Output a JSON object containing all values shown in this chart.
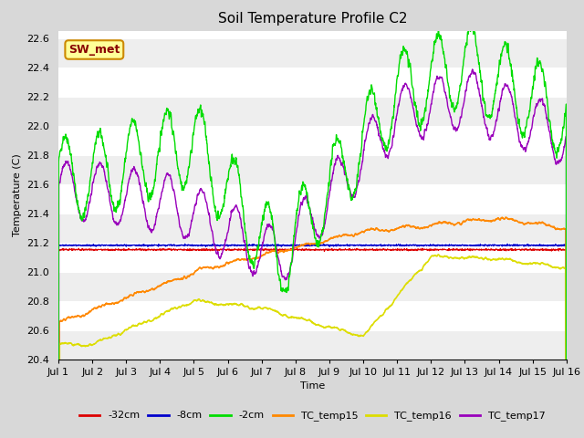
{
  "title": "Soil Temperature Profile C2",
  "xlabel": "Time",
  "ylabel": "Temperature (C)",
  "ylim": [
    20.4,
    22.65
  ],
  "xlim": [
    0,
    15
  ],
  "xtick_labels": [
    "Jul 1",
    "Jul 2",
    "Jul 3",
    "Jul 4",
    "Jul 5",
    "Jul 6",
    "Jul 7",
    "Jul 8",
    "Jul 9",
    "Jul 10",
    "Jul 11",
    "Jul 12",
    "Jul 13",
    "Jul 14",
    "Jul 15",
    "Jul 16"
  ],
  "ytick_values": [
    20.4,
    20.6,
    20.8,
    21.0,
    21.2,
    21.4,
    21.6,
    21.8,
    22.0,
    22.2,
    22.4,
    22.6
  ],
  "label_box_text": "SW_met",
  "label_box_bg": "#ffff99",
  "label_box_edge": "#cc8800",
  "label_box_text_color": "#880000",
  "line_colors": {
    "neg32cm": "#dd0000",
    "neg8cm": "#0000cc",
    "neg2cm": "#00dd00",
    "TC_temp15": "#ff8800",
    "TC_temp16": "#dddd00",
    "TC_temp17": "#9900bb"
  },
  "line_labels": [
    "-32cm",
    "-8cm",
    "-2cm",
    "TC_temp15",
    "TC_temp16",
    "TC_temp17"
  ],
  "fig_bg_color": "#d8d8d8",
  "plot_bg_color": "#ffffff",
  "grid_color": "#e0e0e0",
  "title_fontsize": 11,
  "axis_fontsize": 8,
  "legend_fontsize": 8
}
